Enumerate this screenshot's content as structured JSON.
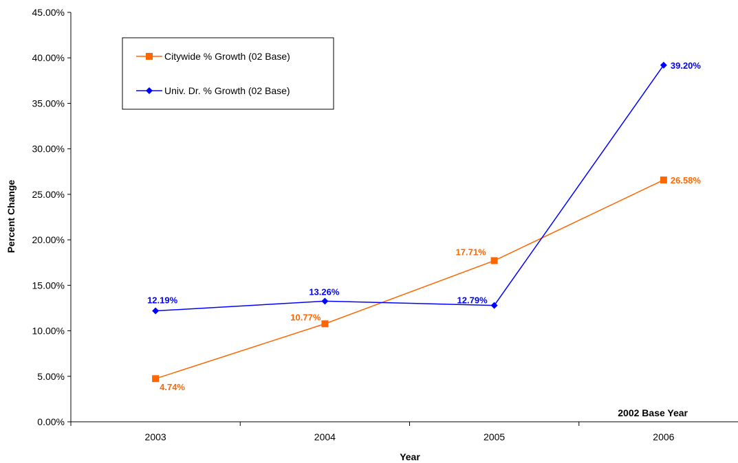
{
  "chart_data": {
    "type": "line",
    "categories": [
      "2003",
      "2004",
      "2005",
      "2006"
    ],
    "series": [
      {
        "name": "Citywide % Growth (02 Base)",
        "values": [
          4.74,
          10.77,
          17.71,
          26.58
        ],
        "labels": [
          "4.74%",
          "10.77%",
          "17.71%",
          "26.58%"
        ],
        "color": "#FF6600",
        "marker": "square"
      },
      {
        "name": "Univ. Dr. % Growth (02 Base)",
        "values": [
          12.19,
          13.26,
          12.79,
          39.2
        ],
        "labels": [
          "12.19%",
          "13.26%",
          "12.79%",
          "39.20%"
        ],
        "color": "#0000FF",
        "marker": "diamond"
      }
    ],
    "ylabel": "Percent Change",
    "xlabel": "Year",
    "ylim": [
      0,
      45
    ],
    "yticks": [
      "0.00%",
      "5.00%",
      "10.00%",
      "15.00%",
      "20.00%",
      "25.00%",
      "30.00%",
      "35.00%",
      "40.00%",
      "45.00%"
    ],
    "annotation": "2002 Base Year",
    "legend_position": "top-left",
    "grid": false
  }
}
